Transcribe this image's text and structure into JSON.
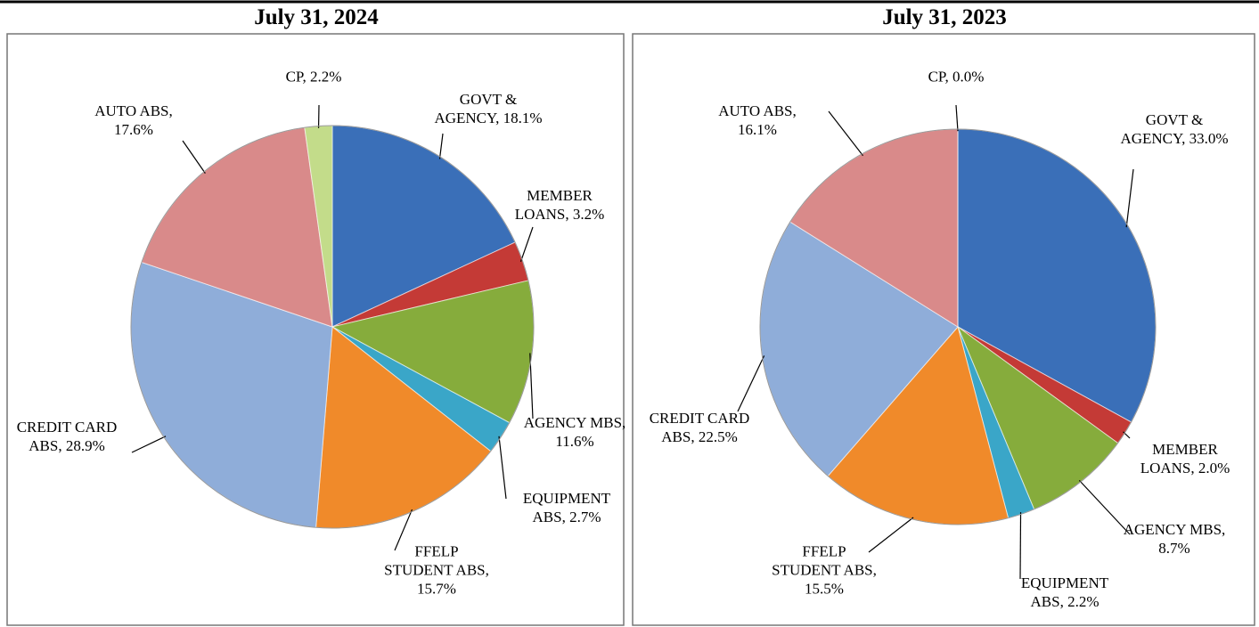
{
  "chart_data": [
    {
      "type": "pie",
      "title": "July 31, 2024",
      "categories": [
        "GOVT & AGENCY,",
        "MEMBER LOANS,",
        "AGENCY MBS,",
        "EQUIPMENT ABS,",
        "FFELP STUDENT ABS,",
        "CREDIT CARD ABS,",
        "AUTO ABS,",
        "CP,"
      ],
      "values": [
        18.1,
        3.2,
        11.6,
        2.7,
        15.7,
        28.9,
        17.6,
        2.2
      ],
      "value_labels": [
        "18.1%",
        "3.2%",
        "11.6%",
        "2.7%",
        "15.7%",
        "28.9%",
        "17.6%",
        "2.2%"
      ],
      "colors": [
        "#3a6fb8",
        "#c43a36",
        "#86ac3c",
        "#3aa6c8",
        "#f08a2a",
        "#8fadd9",
        "#d98a8a",
        "#c3dc8a"
      ]
    },
    {
      "type": "pie",
      "title": "July 31, 2023",
      "categories": [
        "GOVT & AGENCY,",
        "MEMBER LOANS,",
        "AGENCY MBS,",
        "EQUIPMENT ABS,",
        "FFELP STUDENT ABS,",
        "CREDIT CARD ABS,",
        "AUTO ABS,",
        "CP,"
      ],
      "values": [
        33.0,
        2.0,
        8.7,
        2.2,
        15.5,
        22.5,
        16.1,
        0.0
      ],
      "value_labels": [
        "33.0%",
        "2.0%",
        "8.7%",
        "2.2%",
        "15.5%",
        "22.5%",
        "16.1%",
        "0.0%"
      ],
      "colors": [
        "#3a6fb8",
        "#c43a36",
        "#86ac3c",
        "#3aa6c8",
        "#f08a2a",
        "#8fadd9",
        "#d98a8a",
        "#c3dc8a"
      ]
    }
  ]
}
